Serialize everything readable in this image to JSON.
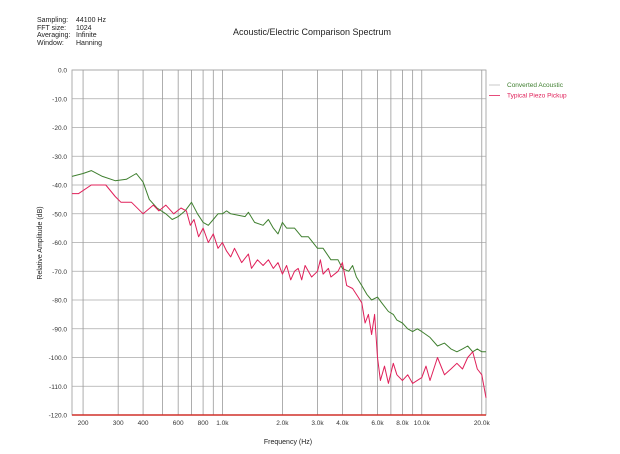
{
  "info": [
    {
      "label": "Sampling:",
      "value": "44100 Hz"
    },
    {
      "label": "FFT size:",
      "value": "1024"
    },
    {
      "label": "Averaging:",
      "value": "Infinite"
    },
    {
      "label": "Window:",
      "value": "Hanning"
    }
  ],
  "chart_data": {
    "type": "line",
    "title": "Acoustic/Electric Comparison Spectrum",
    "xlabel": "Frequency (Hz)",
    "ylabel": "Relative Amplitude (dB)",
    "xscale": "log",
    "xlim": [
      176,
      21000
    ],
    "ylim": [
      -120,
      0
    ],
    "grid": true,
    "legend": "right",
    "x_gridlines": [
      200,
      300,
      400,
      500,
      600,
      700,
      800,
      900,
      1000,
      2000,
      3000,
      4000,
      5000,
      6000,
      7000,
      8000,
      9000,
      10000,
      20000
    ],
    "x_ticks": [
      {
        "v": 200,
        "label": "200"
      },
      {
        "v": 300,
        "label": "300"
      },
      {
        "v": 400,
        "label": "400"
      },
      {
        "v": 600,
        "label": "600"
      },
      {
        "v": 800,
        "label": "800"
      },
      {
        "v": 1000,
        "label": "1.0k"
      },
      {
        "v": 2000,
        "label": "2.0k"
      },
      {
        "v": 3000,
        "label": "3.0k"
      },
      {
        "v": 4000,
        "label": "4.0k"
      },
      {
        "v": 6000,
        "label": "6.0k"
      },
      {
        "v": 8000,
        "label": "8.0k"
      },
      {
        "v": 10000,
        "label": "10.0k"
      },
      {
        "v": 20000,
        "label": "20.0k"
      }
    ],
    "y_ticks": [
      {
        "v": 0,
        "label": "0.0"
      },
      {
        "v": -10,
        "label": "-10.0"
      },
      {
        "v": -20,
        "label": "-20.0"
      },
      {
        "v": -30,
        "label": "-30.0"
      },
      {
        "v": -40,
        "label": "-40.0"
      },
      {
        "v": -50,
        "label": "-50.0"
      },
      {
        "v": -60,
        "label": "-60.0"
      },
      {
        "v": -70,
        "label": "-70.0"
      },
      {
        "v": -80,
        "label": "-80.0"
      },
      {
        "v": -90,
        "label": "-90.0"
      },
      {
        "v": -100,
        "label": "-100.0"
      },
      {
        "v": -110,
        "label": "-110.0"
      },
      {
        "v": -120,
        "label": "-120.0"
      }
    ],
    "series": [
      {
        "name": "Converted Acoustic",
        "color": "#3f7f2f",
        "points": [
          [
            176,
            -37
          ],
          [
            200,
            -36
          ],
          [
            220,
            -35
          ],
          [
            250,
            -37
          ],
          [
            290,
            -38.5
          ],
          [
            330,
            -38
          ],
          [
            370,
            -36
          ],
          [
            400,
            -39
          ],
          [
            430,
            -45
          ],
          [
            470,
            -48
          ],
          [
            520,
            -50
          ],
          [
            560,
            -52
          ],
          [
            600,
            -51
          ],
          [
            650,
            -49
          ],
          [
            700,
            -46
          ],
          [
            750,
            -50
          ],
          [
            800,
            -53
          ],
          [
            850,
            -54
          ],
          [
            900,
            -52
          ],
          [
            950,
            -50
          ],
          [
            1000,
            -50
          ],
          [
            1050,
            -49
          ],
          [
            1100,
            -50
          ],
          [
            1200,
            -50.5
          ],
          [
            1300,
            -51
          ],
          [
            1350,
            -49.5
          ],
          [
            1450,
            -53
          ],
          [
            1600,
            -54
          ],
          [
            1700,
            -52
          ],
          [
            1800,
            -55
          ],
          [
            1900,
            -57
          ],
          [
            2000,
            -53
          ],
          [
            2100,
            -55
          ],
          [
            2300,
            -55
          ],
          [
            2500,
            -58
          ],
          [
            2700,
            -58
          ],
          [
            3000,
            -62
          ],
          [
            3200,
            -62
          ],
          [
            3500,
            -66
          ],
          [
            3800,
            -66
          ],
          [
            4000,
            -69
          ],
          [
            4300,
            -70
          ],
          [
            4500,
            -68
          ],
          [
            4700,
            -72
          ],
          [
            5000,
            -75
          ],
          [
            5300,
            -78
          ],
          [
            5600,
            -80
          ],
          [
            6000,
            -79
          ],
          [
            6300,
            -81
          ],
          [
            6800,
            -84
          ],
          [
            7200,
            -85
          ],
          [
            7500,
            -87
          ],
          [
            8000,
            -88
          ],
          [
            8500,
            -90
          ],
          [
            9000,
            -91
          ],
          [
            9500,
            -90
          ],
          [
            10000,
            -91
          ],
          [
            11000,
            -93
          ],
          [
            12000,
            -96
          ],
          [
            13000,
            -95
          ],
          [
            14000,
            -97
          ],
          [
            15000,
            -98
          ],
          [
            16000,
            -97
          ],
          [
            17000,
            -96
          ],
          [
            18000,
            -98
          ],
          [
            19000,
            -97
          ],
          [
            20000,
            -98
          ],
          [
            21000,
            -98
          ]
        ]
      },
      {
        "name": "Typical Piezo Pickup",
        "color": "#e0205a",
        "points": [
          [
            176,
            -43
          ],
          [
            190,
            -43
          ],
          [
            220,
            -40
          ],
          [
            260,
            -40
          ],
          [
            290,
            -44
          ],
          [
            310,
            -46
          ],
          [
            350,
            -46
          ],
          [
            400,
            -50
          ],
          [
            450,
            -47
          ],
          [
            480,
            -49
          ],
          [
            520,
            -47
          ],
          [
            570,
            -50
          ],
          [
            620,
            -48
          ],
          [
            660,
            -49
          ],
          [
            690,
            -54
          ],
          [
            720,
            -52
          ],
          [
            760,
            -58
          ],
          [
            800,
            -55
          ],
          [
            850,
            -60
          ],
          [
            900,
            -57
          ],
          [
            950,
            -62
          ],
          [
            1000,
            -60
          ],
          [
            1050,
            -63
          ],
          [
            1100,
            -65
          ],
          [
            1150,
            -62
          ],
          [
            1250,
            -67
          ],
          [
            1350,
            -64
          ],
          [
            1400,
            -69
          ],
          [
            1500,
            -66
          ],
          [
            1600,
            -68
          ],
          [
            1700,
            -66
          ],
          [
            1800,
            -69
          ],
          [
            1900,
            -67
          ],
          [
            2000,
            -71
          ],
          [
            2100,
            -68
          ],
          [
            2200,
            -73
          ],
          [
            2300,
            -70
          ],
          [
            2400,
            -69
          ],
          [
            2500,
            -73
          ],
          [
            2600,
            -68
          ],
          [
            2800,
            -72
          ],
          [
            3000,
            -70
          ],
          [
            3100,
            -66
          ],
          [
            3200,
            -71
          ],
          [
            3400,
            -69
          ],
          [
            3500,
            -72
          ],
          [
            3800,
            -70
          ],
          [
            4000,
            -67
          ],
          [
            4200,
            -75
          ],
          [
            4500,
            -76
          ],
          [
            4800,
            -79
          ],
          [
            5000,
            -81
          ],
          [
            5200,
            -88
          ],
          [
            5400,
            -85
          ],
          [
            5600,
            -92
          ],
          [
            5800,
            -85
          ],
          [
            6000,
            -100
          ],
          [
            6200,
            -108
          ],
          [
            6500,
            -103
          ],
          [
            6800,
            -109
          ],
          [
            7200,
            -102
          ],
          [
            7500,
            -106
          ],
          [
            8000,
            -108
          ],
          [
            8500,
            -106
          ],
          [
            9000,
            -109
          ],
          [
            10000,
            -107
          ],
          [
            10500,
            -103
          ],
          [
            11000,
            -108
          ],
          [
            12000,
            -100
          ],
          [
            13000,
            -106
          ],
          [
            14000,
            -104
          ],
          [
            15000,
            -102
          ],
          [
            16000,
            -104
          ],
          [
            17000,
            -100
          ],
          [
            18000,
            -98
          ],
          [
            19000,
            -104
          ],
          [
            20000,
            -106
          ],
          [
            21000,
            -114
          ]
        ]
      }
    ]
  }
}
